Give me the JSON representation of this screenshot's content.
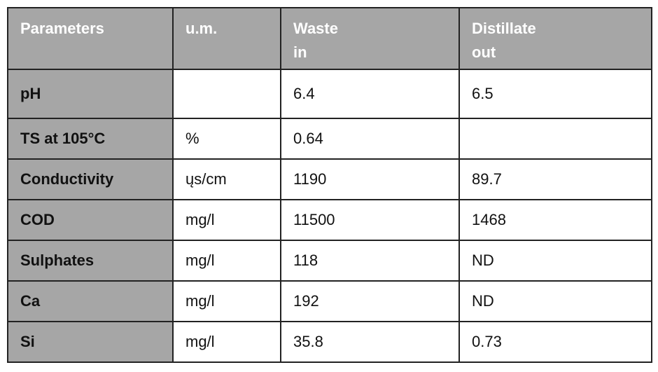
{
  "table": {
    "header": [
      "Parameters",
      "u.m.",
      "Waste\nin",
      "Distillate\nout"
    ],
    "rows": [
      [
        "pH",
        null,
        "6.4",
        "6.5"
      ],
      [
        "TS at 105°C",
        "%",
        "0.64",
        null
      ],
      [
        "Conductivity",
        "ųs/cm",
        "1190",
        "89.7"
      ],
      [
        "COD",
        "mg/l",
        "11500",
        "1468"
      ],
      [
        "Sulphates",
        "mg/l",
        "118",
        "ND"
      ],
      [
        "Ca",
        "mg/l",
        "192",
        "ND"
      ],
      [
        "Si",
        "mg/l",
        "35.8",
        "0.73"
      ]
    ]
  }
}
